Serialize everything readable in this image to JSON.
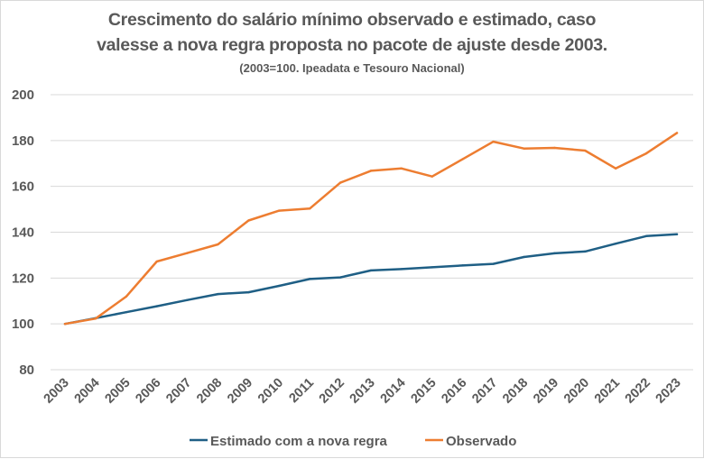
{
  "chart_data": {
    "type": "line",
    "title_line1": "Crescimento do salário mínimo observado e estimado, caso",
    "title_line2": "valesse a nova regra proposta no pacote de ajuste desde 2003.",
    "subtitle": "(2003=100. Ipeadata e Tesouro Nacional)",
    "xlabel": "",
    "ylabel": "",
    "ylim": [
      80,
      200
    ],
    "yticks": [
      80,
      100,
      120,
      140,
      160,
      180,
      200
    ],
    "grid": true,
    "legend_position": "bottom",
    "categories": [
      "2003",
      "2004",
      "2005",
      "2006",
      "2007",
      "2008",
      "2009",
      "2010",
      "2011",
      "2012",
      "2013",
      "2014",
      "2015",
      "2016",
      "2017",
      "2018",
      "2019",
      "2020",
      "2021",
      "2022",
      "2023"
    ],
    "series": [
      {
        "name": "Estimado com a nova regra",
        "color": "#1f5f85",
        "values": [
          100,
          102.5,
          105.1,
          107.7,
          110.4,
          113.0,
          113.8,
          116.6,
          119.6,
          120.3,
          123.3,
          123.9,
          124.7,
          125.5,
          126.2,
          129.2,
          130.8,
          131.6,
          135.0,
          138.3,
          139.1
        ]
      },
      {
        "name": "Observado",
        "color": "#ed7d31",
        "values": [
          100,
          102.3,
          111.9,
          127.2,
          130.9,
          134.7,
          145.1,
          149.4,
          150.3,
          161.6,
          166.8,
          167.8,
          164.3,
          171.9,
          179.5,
          176.5,
          176.8,
          175.6,
          167.8,
          174.4,
          183.3
        ]
      }
    ]
  }
}
